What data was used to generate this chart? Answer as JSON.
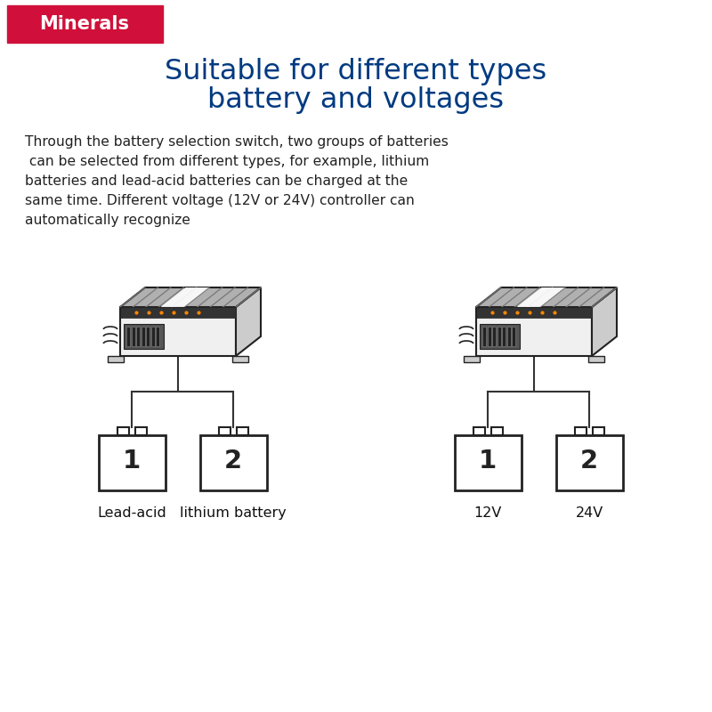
{
  "bg_color": "#ffffff",
  "logo_bg": "#d0103a",
  "logo_text": "Minerals",
  "title_line1": "Suitable for different types",
  "title_line2": "battery and voltages",
  "title_color": "#003a80",
  "body_lines": [
    "Through the battery selection switch, two groups of batteries",
    " can be selected from different types, for example, lithium",
    "batteries and lead-acid batteries can be charged at the",
    "same time. Different voltage (12V or 24V) controller can",
    "automatically recognize"
  ],
  "body_color": "#222222",
  "label_left_1": "Lead-acid",
  "label_left_2": "lithium battery",
  "label_right_1": "12V",
  "label_right_2": "24V",
  "line_color": "#333333",
  "charger_body_color": "#dddddd",
  "charger_dark": "#222222",
  "charger_mid": "#888888"
}
